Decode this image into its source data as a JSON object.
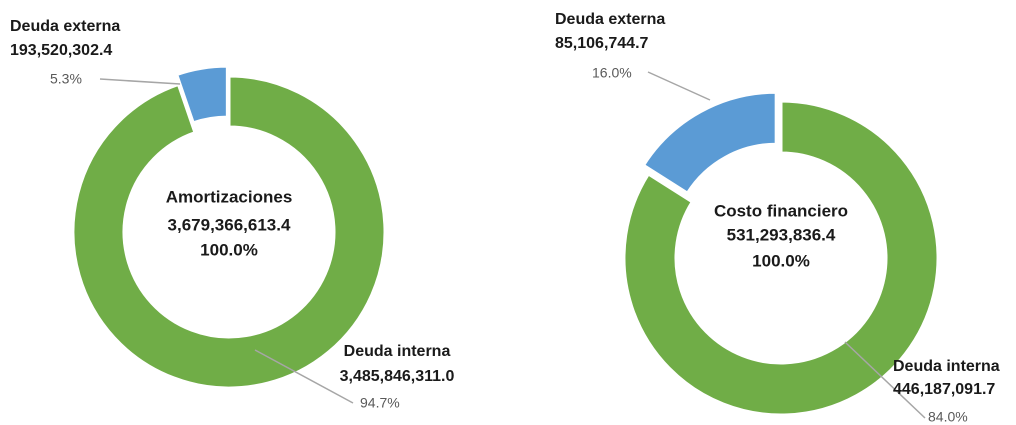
{
  "chart_data": [
    {
      "type": "pie",
      "donut": true,
      "title": "Amortizaciones",
      "total": 3679366613.4,
      "total_label": "3,679,366,613.4",
      "total_percent": 100,
      "total_percent_label": "100.0%",
      "categories": [
        "Deuda externa",
        "Deuda interna"
      ],
      "values": [
        193520302.4,
        3485846311.0
      ],
      "value_labels": [
        "193,520,302.4",
        "3,485,846,311.0"
      ],
      "percents": [
        5.3,
        94.7
      ],
      "percent_labels": [
        "5.3%",
        "94.7%"
      ],
      "colors": [
        "#5b9bd5",
        "#70ad47"
      ],
      "exploded": [
        "Deuda externa"
      ]
    },
    {
      "type": "pie",
      "donut": true,
      "title": "Costo financiero",
      "total": 531293836.4,
      "total_label": "531,293,836.4",
      "total_percent": 100,
      "total_percent_label": "100.0%",
      "categories": [
        "Deuda externa",
        "Deuda interna"
      ],
      "values": [
        85106744.7,
        446187091.7
      ],
      "value_labels": [
        "85,106,744.7",
        "446,187,091.7"
      ],
      "percents": [
        16.0,
        84.0
      ],
      "percent_labels": [
        "16.0%",
        "84.0%"
      ],
      "colors": [
        "#5b9bd5",
        "#70ad47"
      ],
      "exploded": [
        "Deuda externa"
      ]
    }
  ]
}
